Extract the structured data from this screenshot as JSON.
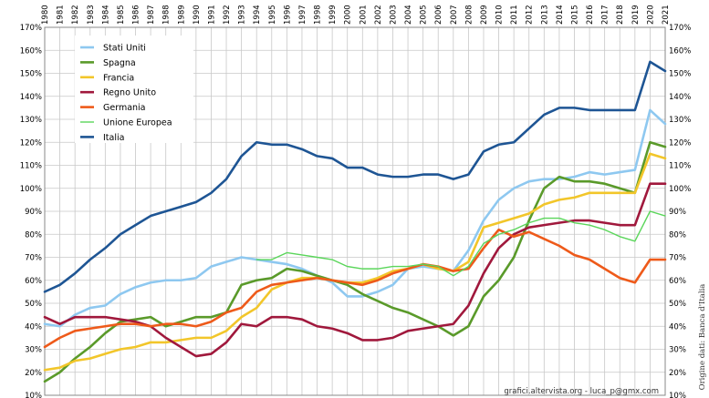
{
  "chart_data": {
    "type": "line",
    "x": [
      "1980",
      "1981",
      "1982",
      "1983",
      "1984",
      "1985",
      "1986",
      "1987",
      "1988",
      "1989",
      "1990",
      "1991",
      "1992",
      "1993",
      "1994",
      "1995",
      "1996",
      "1997",
      "1998",
      "1999",
      "2000",
      "2001",
      "2002",
      "2003",
      "2004",
      "2005",
      "2006",
      "2007",
      "2008",
      "2009",
      "2010",
      "2011",
      "2012",
      "2013",
      "2014",
      "2015",
      "2016",
      "2017",
      "2018",
      "2019",
      "2020",
      "2021"
    ],
    "y_ticks": [
      "10%",
      "20%",
      "30%",
      "40%",
      "50%",
      "60%",
      "70%",
      "80%",
      "90%",
      "100%",
      "110%",
      "120%",
      "130%",
      "140%",
      "150%",
      "160%",
      "170%"
    ],
    "ylim": [
      10,
      170
    ],
    "grid": true,
    "legend_position": "top-left",
    "series": [
      {
        "name": "Stati Uniti",
        "color": "#8ec8f0",
        "values": [
          41,
          40,
          45,
          48,
          49,
          54,
          57,
          59,
          60,
          60,
          61,
          66,
          68,
          70,
          69,
          68,
          67,
          65,
          62,
          59,
          53,
          53,
          55,
          58,
          65,
          66,
          65,
          64,
          73,
          86,
          95,
          100,
          103,
          104,
          104,
          105,
          107,
          106,
          107,
          108,
          134,
          128
        ]
      },
      {
        "name": "Spagna",
        "color": "#5a9a2a",
        "values": [
          16,
          20,
          26,
          31,
          37,
          42,
          43,
          44,
          40,
          42,
          44,
          44,
          46,
          58,
          60,
          61,
          65,
          64,
          62,
          60,
          58,
          54,
          51,
          48,
          46,
          43,
          40,
          36,
          40,
          53,
          60,
          70,
          86,
          100,
          105,
          103,
          103,
          102,
          100,
          98,
          120,
          118
        ]
      },
      {
        "name": "Francia",
        "color": "#f2c62a",
        "values": [
          21,
          22,
          25,
          26,
          28,
          30,
          31,
          33,
          33,
          34,
          35,
          35,
          38,
          44,
          48,
          56,
          59,
          61,
          61,
          60,
          59,
          59,
          61,
          64,
          65,
          67,
          65,
          64,
          68,
          83,
          85,
          87,
          89,
          93,
          95,
          96,
          98,
          98,
          98,
          98,
          115,
          113
        ]
      },
      {
        "name": "Regno Unito",
        "color": "#a0183c",
        "values": [
          44,
          41,
          44,
          44,
          44,
          43,
          42,
          40,
          35,
          31,
          27,
          28,
          33,
          41,
          40,
          44,
          44,
          43,
          40,
          39,
          37,
          34,
          34,
          35,
          38,
          39,
          40,
          41,
          49,
          63,
          74,
          80,
          83,
          84,
          85,
          86,
          86,
          85,
          84,
          84,
          102,
          102
        ]
      },
      {
        "name": "Germania",
        "color": "#ee5a1a",
        "values": [
          31,
          35,
          38,
          39,
          40,
          41,
          41,
          40,
          41,
          41,
          40,
          42,
          46,
          48,
          55,
          58,
          59,
          60,
          61,
          60,
          59,
          58,
          60,
          63,
          65,
          67,
          66,
          64,
          65,
          74,
          82,
          79,
          81,
          78,
          75,
          71,
          69,
          65,
          61,
          59,
          69,
          69
        ]
      },
      {
        "name": "Unione Europea",
        "color": "#5ad65a",
        "values": [
          null,
          null,
          null,
          null,
          null,
          null,
          null,
          null,
          null,
          null,
          null,
          null,
          null,
          null,
          69,
          69,
          72,
          71,
          70,
          69,
          66,
          65,
          65,
          66,
          66,
          67,
          66,
          62,
          66,
          76,
          80,
          82,
          85,
          87,
          87,
          85,
          84,
          82,
          79,
          77,
          90,
          88
        ]
      },
      {
        "name": "Italia",
        "color": "#1e5594",
        "values": [
          55,
          58,
          63,
          69,
          74,
          80,
          84,
          88,
          90,
          92,
          94,
          98,
          104,
          114,
          120,
          119,
          119,
          117,
          114,
          113,
          109,
          109,
          106,
          105,
          105,
          106,
          106,
          104,
          106,
          116,
          119,
          120,
          126,
          132,
          135,
          135,
          134,
          134,
          134,
          134,
          155,
          151
        ]
      }
    ],
    "credit": "grafici.altervista.org  -  luca_p@gmx.com",
    "source": "Origine dati: Banca d'Italia"
  }
}
